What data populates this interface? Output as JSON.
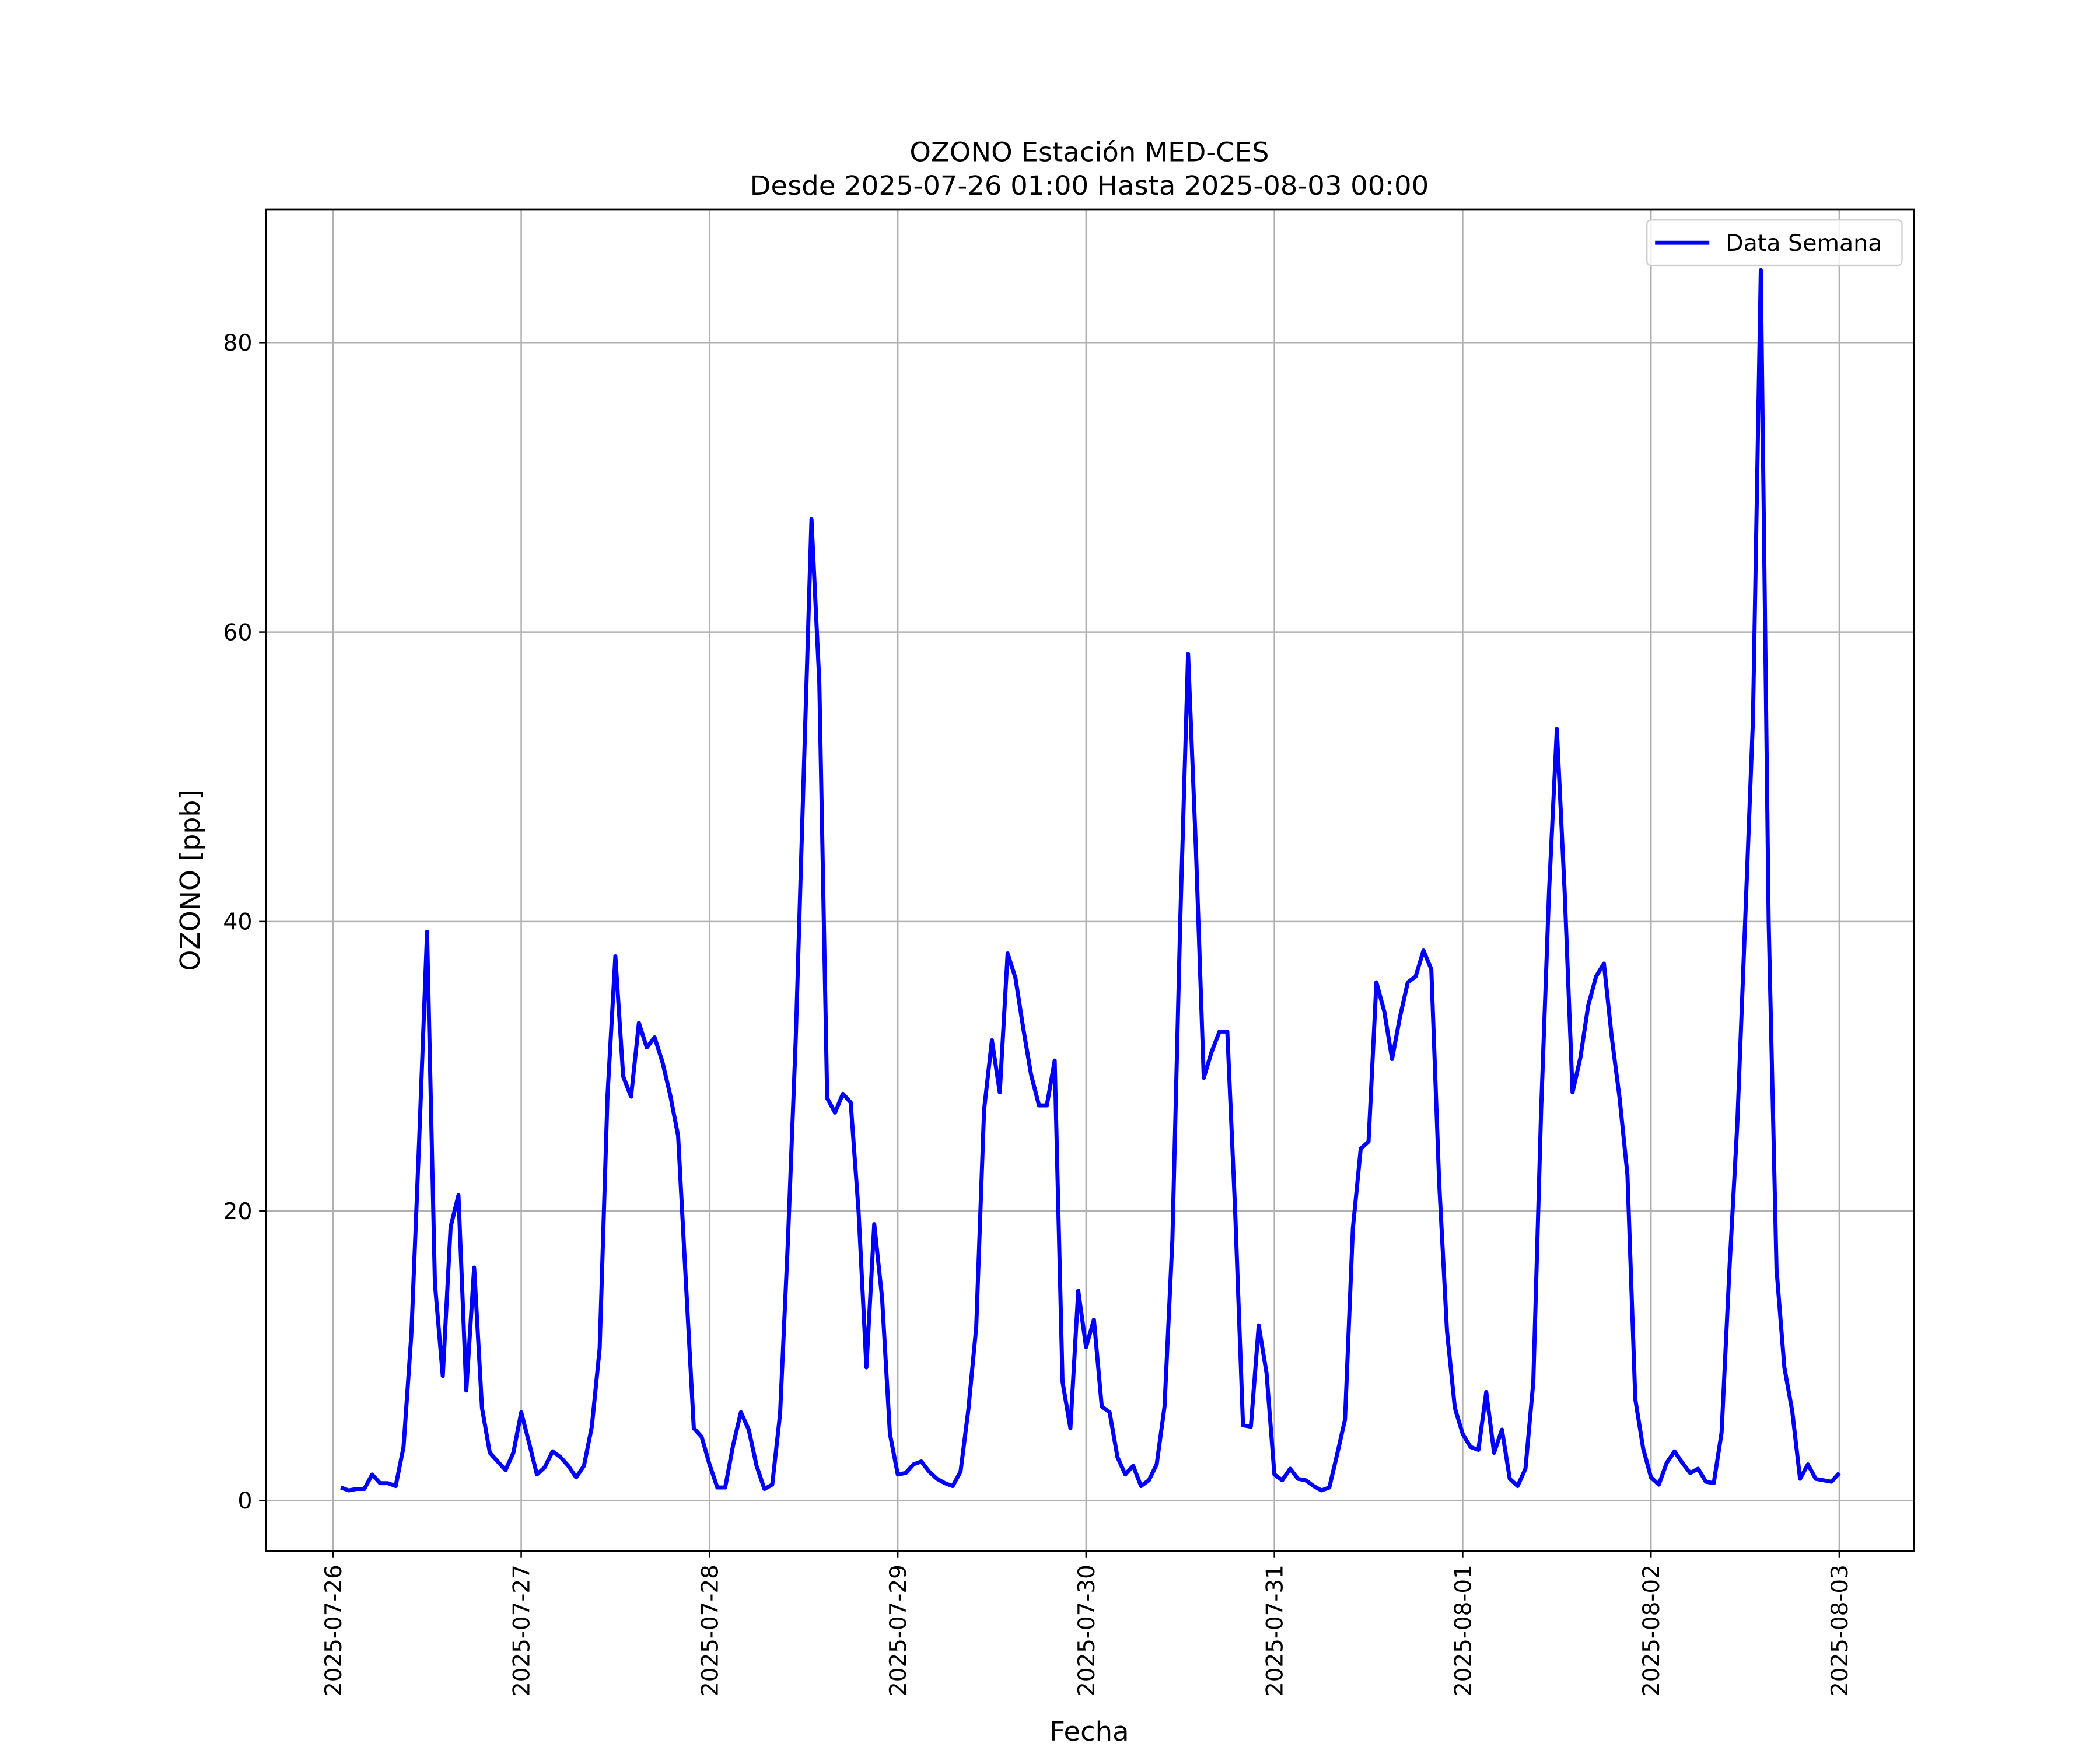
{
  "chart_data": {
    "type": "line",
    "title": "OZONO Estación MED-CES",
    "subtitle": "Desde 2025-07-26 01:00 Hasta 2025-08-03 00:00",
    "xlabel": "Fecha",
    "ylabel": "OZONO [ppb]",
    "x": [
      "2025-07-26 01:00",
      "2025-07-26 02:00",
      "2025-07-26 03:00",
      "2025-07-26 04:00",
      "2025-07-26 05:00",
      "2025-07-26 06:00",
      "2025-07-26 07:00",
      "2025-07-26 08:00",
      "2025-07-26 09:00",
      "2025-07-26 10:00",
      "2025-07-26 11:00",
      "2025-07-26 12:00",
      "2025-07-26 13:00",
      "2025-07-26 14:00",
      "2025-07-26 15:00",
      "2025-07-26 16:00",
      "2025-07-26 17:00",
      "2025-07-26 18:00",
      "2025-07-26 19:00",
      "2025-07-26 20:00",
      "2025-07-26 21:00",
      "2025-07-26 22:00",
      "2025-07-26 23:00",
      "2025-07-27 00:00",
      "2025-07-27 01:00",
      "2025-07-27 02:00",
      "2025-07-27 03:00",
      "2025-07-27 04:00",
      "2025-07-27 05:00",
      "2025-07-27 06:00",
      "2025-07-27 07:00",
      "2025-07-27 08:00",
      "2025-07-27 09:00",
      "2025-07-27 10:00",
      "2025-07-27 11:00",
      "2025-07-27 12:00",
      "2025-07-27 13:00",
      "2025-07-27 14:00",
      "2025-07-27 15:00",
      "2025-07-27 16:00",
      "2025-07-27 17:00",
      "2025-07-27 18:00",
      "2025-07-27 19:00",
      "2025-07-27 20:00",
      "2025-07-27 21:00",
      "2025-07-27 22:00",
      "2025-07-27 23:00",
      "2025-07-28 00:00",
      "2025-07-28 01:00",
      "2025-07-28 02:00",
      "2025-07-28 03:00",
      "2025-07-28 04:00",
      "2025-07-28 05:00",
      "2025-07-28 06:00",
      "2025-07-28 07:00",
      "2025-07-28 08:00",
      "2025-07-28 09:00",
      "2025-07-28 10:00",
      "2025-07-28 11:00",
      "2025-07-28 12:00",
      "2025-07-28 13:00",
      "2025-07-28 14:00",
      "2025-07-28 15:00",
      "2025-07-28 16:00",
      "2025-07-28 17:00",
      "2025-07-28 18:00",
      "2025-07-28 19:00",
      "2025-07-28 20:00",
      "2025-07-28 21:00",
      "2025-07-28 22:00",
      "2025-07-28 23:00",
      "2025-07-29 00:00",
      "2025-07-29 01:00",
      "2025-07-29 02:00",
      "2025-07-29 03:00",
      "2025-07-29 04:00",
      "2025-07-29 05:00",
      "2025-07-29 06:00",
      "2025-07-29 07:00",
      "2025-07-29 08:00",
      "2025-07-29 09:00",
      "2025-07-29 10:00",
      "2025-07-29 11:00",
      "2025-07-29 12:00",
      "2025-07-29 13:00",
      "2025-07-29 14:00",
      "2025-07-29 15:00",
      "2025-07-29 16:00",
      "2025-07-29 17:00",
      "2025-07-29 18:00",
      "2025-07-29 19:00",
      "2025-07-29 20:00",
      "2025-07-29 21:00",
      "2025-07-29 22:00",
      "2025-07-29 23:00",
      "2025-07-30 00:00",
      "2025-07-30 01:00",
      "2025-07-30 02:00",
      "2025-07-30 03:00",
      "2025-07-30 04:00",
      "2025-07-30 05:00",
      "2025-07-30 06:00",
      "2025-07-30 07:00",
      "2025-07-30 08:00",
      "2025-07-30 09:00",
      "2025-07-30 10:00",
      "2025-07-30 11:00",
      "2025-07-30 12:00",
      "2025-07-30 13:00",
      "2025-07-30 14:00",
      "2025-07-30 15:00",
      "2025-07-30 16:00",
      "2025-07-30 17:00",
      "2025-07-30 18:00",
      "2025-07-30 19:00",
      "2025-07-30 20:00",
      "2025-07-30 21:00",
      "2025-07-30 22:00",
      "2025-07-30 23:00",
      "2025-07-31 00:00",
      "2025-07-31 01:00",
      "2025-07-31 02:00",
      "2025-07-31 03:00",
      "2025-07-31 04:00",
      "2025-07-31 05:00",
      "2025-07-31 06:00",
      "2025-07-31 07:00",
      "2025-07-31 08:00",
      "2025-07-31 09:00",
      "2025-07-31 10:00",
      "2025-07-31 11:00",
      "2025-07-31 12:00",
      "2025-07-31 13:00",
      "2025-07-31 14:00",
      "2025-07-31 15:00",
      "2025-07-31 16:00",
      "2025-07-31 17:00",
      "2025-07-31 18:00",
      "2025-07-31 19:00",
      "2025-07-31 20:00",
      "2025-07-31 21:00",
      "2025-07-31 22:00",
      "2025-07-31 23:00",
      "2025-08-01 00:00",
      "2025-08-01 01:00",
      "2025-08-01 02:00",
      "2025-08-01 03:00",
      "2025-08-01 04:00",
      "2025-08-01 05:00",
      "2025-08-01 06:00",
      "2025-08-01 07:00",
      "2025-08-01 08:00",
      "2025-08-01 09:00",
      "2025-08-01 10:00",
      "2025-08-01 11:00",
      "2025-08-01 12:00",
      "2025-08-01 13:00",
      "2025-08-01 14:00",
      "2025-08-01 15:00",
      "2025-08-01 16:00",
      "2025-08-01 17:00",
      "2025-08-01 18:00",
      "2025-08-01 19:00",
      "2025-08-01 20:00",
      "2025-08-01 21:00",
      "2025-08-01 22:00",
      "2025-08-01 23:00",
      "2025-08-02 00:00",
      "2025-08-02 01:00",
      "2025-08-02 02:00",
      "2025-08-02 03:00",
      "2025-08-02 04:00",
      "2025-08-02 05:00",
      "2025-08-02 06:00",
      "2025-08-02 07:00",
      "2025-08-02 08:00",
      "2025-08-02 09:00",
      "2025-08-02 10:00",
      "2025-08-02 11:00",
      "2025-08-02 12:00",
      "2025-08-02 13:00",
      "2025-08-02 14:00",
      "2025-08-02 15:00",
      "2025-08-02 16:00",
      "2025-08-02 17:00",
      "2025-08-02 18:00",
      "2025-08-02 19:00",
      "2025-08-02 20:00",
      "2025-08-02 21:00",
      "2025-08-02 22:00",
      "2025-08-02 23:00",
      "2025-08-03 00:00"
    ],
    "series": [
      {
        "name": "Data Semana",
        "color": "#0000ff",
        "values": [
          0.9,
          0.7,
          0.8,
          0.8,
          1.8,
          1.2,
          1.2,
          1.0,
          3.7,
          11.5,
          25,
          39.3,
          15,
          8.6,
          18.9,
          21.1,
          7.6,
          16.1,
          6.4,
          3.3,
          2.7,
          2.1,
          3.3,
          6.1,
          4.0,
          1.8,
          2.3,
          3.4,
          3.0,
          2.4,
          1.6,
          2.4,
          5.1,
          10.5,
          28,
          37.6,
          29.3,
          27.9,
          33,
          31.3,
          32,
          30.3,
          28,
          25.2,
          15,
          5,
          4.4,
          2.5,
          0.9,
          0.9,
          3.8,
          6.1,
          4.9,
          2.4,
          0.8,
          1.1,
          6,
          18,
          32,
          50,
          67.8,
          56.5,
          27.8,
          26.8,
          28.1,
          27.5,
          20,
          9.2,
          19.1,
          14,
          4.6,
          1.8,
          1.9,
          2.5,
          2.7,
          2.0,
          1.5,
          1.2,
          1.0,
          2.0,
          6.3,
          12,
          27,
          31.8,
          28.2,
          37.8,
          36.1,
          32.6,
          29.4,
          27.3,
          27.3,
          30.4,
          8.2,
          5.0,
          14.5,
          10.6,
          12.5,
          6.5,
          6.1,
          3.0,
          1.8,
          2.4,
          1.0,
          1.4,
          2.5,
          6.5,
          18,
          40,
          58.5,
          45,
          29.2,
          31,
          32.4,
          32.4,
          20,
          5.2,
          5.1,
          12.1,
          8.8,
          1.8,
          1.4,
          2.2,
          1.5,
          1.4,
          1.0,
          0.7,
          0.9,
          3.2,
          5.6,
          18.8,
          24.3,
          24.8,
          35.8,
          33.8,
          30.5,
          33.4,
          35.8,
          36.2,
          38,
          36.7,
          22,
          11.7,
          6.4,
          4.6,
          3.7,
          3.5,
          7.5,
          3.3,
          4.9,
          1.5,
          1.0,
          2.2,
          8.2,
          27,
          42,
          53.3,
          42,
          28.2,
          30.6,
          34.2,
          36.2,
          37.1,
          32,
          27.8,
          22.5,
          7,
          3.6,
          1.6,
          1.1,
          2.6,
          3.4,
          2.6,
          1.9,
          2.2,
          1.3,
          1.2,
          4.7,
          16,
          26,
          40,
          54,
          85,
          40,
          16,
          9.2,
          6.2,
          1.5,
          2.5,
          1.5,
          1.4,
          1.3,
          1.9
        ]
      }
    ],
    "xlim": [
      "2025-07-25 15:27",
      "2025-08-03 09:33"
    ],
    "xticks": [
      "2025-07-26",
      "2025-07-27",
      "2025-07-28",
      "2025-07-29",
      "2025-07-30",
      "2025-07-31",
      "2025-08-01",
      "2025-08-02",
      "2025-08-03"
    ],
    "ylim": [
      -3.5,
      89.2
    ],
    "yticks": [
      0,
      20,
      40,
      60,
      80
    ],
    "grid": true,
    "legend": "upper right"
  }
}
